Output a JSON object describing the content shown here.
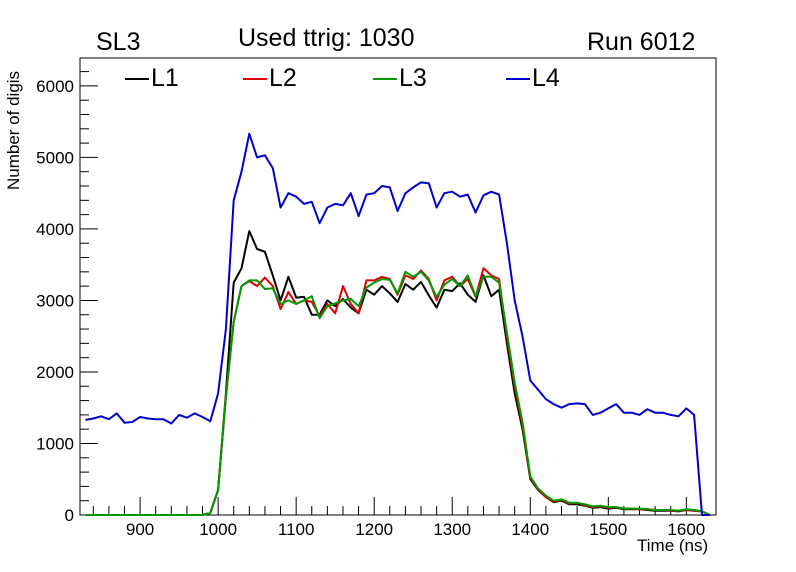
{
  "chart_data": {
    "type": "line",
    "title_left": "SL3",
    "title": "Used ttrig: 1030",
    "title_right": "Run 6012",
    "xlabel": "Time (ns)",
    "ylabel": "Number of digis",
    "xlim": [
      823,
      1638
    ],
    "ylim": [
      0,
      6390
    ],
    "xticks": [
      900,
      1000,
      1100,
      1200,
      1300,
      1400,
      1500,
      1600
    ],
    "yticks": [
      0,
      1000,
      2000,
      3000,
      4000,
      5000,
      6000
    ],
    "legend_position": "top",
    "x_start": 830,
    "x_step": 10,
    "series": [
      {
        "name": "L1",
        "color": "#000000",
        "values": [
          0,
          0,
          0,
          0,
          0,
          0,
          0,
          0,
          0,
          0,
          0,
          0,
          0,
          0,
          0,
          0,
          30,
          350,
          1700,
          3250,
          3450,
          3970,
          3720,
          3680,
          3350,
          3000,
          3330,
          3040,
          3050,
          2800,
          2800,
          3000,
          2920,
          3020,
          2900,
          2820,
          3150,
          3080,
          3200,
          3100,
          2980,
          3230,
          3150,
          3260,
          3070,
          2900,
          3150,
          3130,
          3240,
          3080,
          2980,
          3350,
          3060,
          3150,
          2400,
          1700,
          1200,
          500,
          350,
          250,
          180,
          200,
          150,
          150,
          130,
          100,
          110,
          90,
          100,
          80,
          80,
          80,
          70,
          60,
          60,
          60,
          50,
          70,
          60,
          50,
          0
        ]
      },
      {
        "name": "L2",
        "color": "#dd0000",
        "values": [
          0,
          0,
          0,
          0,
          0,
          0,
          0,
          0,
          0,
          0,
          0,
          0,
          0,
          0,
          0,
          0,
          30,
          350,
          1650,
          2700,
          3200,
          3270,
          3200,
          3320,
          3200,
          2880,
          3120,
          2950,
          3000,
          2980,
          2780,
          2950,
          2820,
          3200,
          2950,
          2820,
          3280,
          3280,
          3330,
          3300,
          3080,
          3350,
          3300,
          3420,
          3300,
          3000,
          3280,
          3330,
          3200,
          3300,
          3050,
          3450,
          3350,
          3300,
          2500,
          1800,
          1250,
          520,
          360,
          250,
          190,
          210,
          160,
          170,
          140,
          110,
          120,
          100,
          110,
          90,
          90,
          80,
          80,
          70,
          70,
          60,
          60,
          70,
          60,
          50,
          0
        ]
      },
      {
        "name": "L3",
        "color": "#009900",
        "values": [
          0,
          0,
          0,
          0,
          0,
          0,
          0,
          0,
          0,
          0,
          0,
          0,
          0,
          0,
          0,
          0,
          30,
          350,
          1650,
          2700,
          3200,
          3280,
          3280,
          3160,
          3170,
          2950,
          3000,
          2950,
          3000,
          3060,
          2750,
          2920,
          2960,
          3000,
          3020,
          2920,
          3180,
          3250,
          3300,
          3290,
          3100,
          3400,
          3330,
          3400,
          3280,
          3050,
          3220,
          3300,
          3200,
          3350,
          3060,
          3330,
          3330,
          3250,
          2550,
          1850,
          1300,
          540,
          370,
          270,
          200,
          220,
          170,
          170,
          150,
          120,
          130,
          110,
          110,
          90,
          90,
          90,
          80,
          70,
          70,
          70,
          60,
          80,
          70,
          50,
          0
        ]
      },
      {
        "name": "L4",
        "color": "#0000cc",
        "values": [
          1330,
          1350,
          1380,
          1340,
          1420,
          1290,
          1300,
          1370,
          1350,
          1340,
          1340,
          1280,
          1400,
          1360,
          1420,
          1370,
          1310,
          1700,
          2600,
          4400,
          4800,
          5330,
          5000,
          5030,
          4850,
          4300,
          4500,
          4450,
          4350,
          4380,
          4080,
          4300,
          4350,
          4330,
          4500,
          4180,
          4480,
          4500,
          4600,
          4580,
          4250,
          4500,
          4580,
          4650,
          4640,
          4300,
          4500,
          4520,
          4450,
          4480,
          4230,
          4470,
          4520,
          4480,
          3800,
          3000,
          2500,
          1880,
          1750,
          1620,
          1550,
          1500,
          1550,
          1560,
          1550,
          1400,
          1430,
          1490,
          1550,
          1430,
          1430,
          1400,
          1480,
          1430,
          1430,
          1400,
          1380,
          1490,
          1400,
          0,
          0
        ]
      }
    ]
  }
}
